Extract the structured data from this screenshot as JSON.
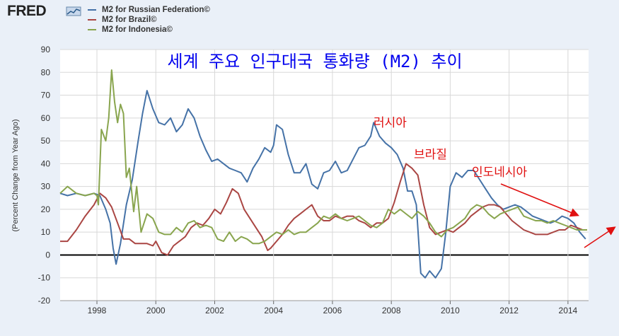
{
  "brand": {
    "logo_text": "FRED",
    "logo_icon": "chart-line-icon"
  },
  "legend": [
    {
      "name": "M2 for Russian Federation©",
      "color": "#4572a7"
    },
    {
      "name": "M2 for Brazil©",
      "color": "#aa4643"
    },
    {
      "name": "M2 for Indonesia©",
      "color": "#89a54e"
    }
  ],
  "chart_data": {
    "type": "line",
    "title": "세계 주요 인구대국 통화량 (M2) 추이",
    "xlabel": "",
    "ylabel": "(Percent Change from Year Ago)",
    "xlim": [
      1996.75,
      2014.7
    ],
    "ylim": [
      -20,
      90
    ],
    "yticks": [
      -20,
      -10,
      0,
      10,
      20,
      30,
      40,
      50,
      60,
      70,
      80,
      90
    ],
    "xticks": [
      1998,
      2000,
      2002,
      2004,
      2006,
      2008,
      2010,
      2012,
      2014
    ],
    "grid": true,
    "zero_line": true,
    "series": [
      {
        "name": "M2 for Russian Federation©",
        "color": "#4572a7",
        "x": [
          1996.75,
          1997.0,
          1997.3,
          1997.6,
          1997.9,
          1998.1,
          1998.3,
          1998.45,
          1998.55,
          1998.65,
          1998.8,
          1999.0,
          1999.2,
          1999.4,
          1999.55,
          1999.7,
          1999.9,
          2000.1,
          2000.3,
          2000.5,
          2000.7,
          2000.9,
          2001.1,
          2001.3,
          2001.5,
          2001.7,
          2001.9,
          2002.1,
          2002.3,
          2002.5,
          2002.7,
          2002.9,
          2003.1,
          2003.3,
          2003.5,
          2003.7,
          2003.9,
          2004.0,
          2004.1,
          2004.3,
          2004.5,
          2004.7,
          2004.9,
          2005.1,
          2005.3,
          2005.5,
          2005.7,
          2005.9,
          2006.1,
          2006.3,
          2006.5,
          2006.7,
          2006.9,
          2007.1,
          2007.3,
          2007.4,
          2007.6,
          2007.8,
          2008.0,
          2008.2,
          2008.4,
          2008.55,
          2008.7,
          2008.85,
          2009.0,
          2009.15,
          2009.3,
          2009.5,
          2009.7,
          2009.85,
          2010.0,
          2010.2,
          2010.4,
          2010.6,
          2010.8,
          2011.0,
          2011.2,
          2011.4,
          2011.6,
          2011.8,
          2012.0,
          2012.2,
          2012.4,
          2012.6,
          2012.8,
          2013.0,
          2013.2,
          2013.4,
          2013.6,
          2013.8,
          2014.0,
          2014.2,
          2014.4,
          2014.6
        ],
        "y": [
          27,
          26,
          27,
          26,
          27,
          26,
          20,
          14,
          3,
          -4,
          5,
          22,
          33,
          50,
          62,
          72,
          64,
          58,
          57,
          60,
          54,
          57,
          64,
          60,
          52,
          46,
          41,
          42,
          40,
          38,
          37,
          36,
          32,
          38,
          42,
          47,
          45,
          48,
          57,
          55,
          44,
          36,
          36,
          40,
          31,
          29,
          36,
          37,
          41,
          36,
          37,
          42,
          47,
          48,
          52,
          58,
          52,
          49,
          47,
          44,
          38,
          28,
          28,
          22,
          -8,
          -10,
          -7,
          -10,
          -6,
          10,
          30,
          36,
          34,
          37,
          37,
          33,
          29,
          25,
          22,
          20,
          21,
          22,
          21,
          19,
          17,
          16,
          15,
          14,
          15,
          17,
          16,
          14,
          10,
          7
        ]
      },
      {
        "name": "M2 for Brazil©",
        "color": "#aa4643",
        "x": [
          1996.75,
          1997.0,
          1997.3,
          1997.6,
          1997.9,
          1998.1,
          1998.3,
          1998.5,
          1998.7,
          1998.9,
          1999.1,
          1999.3,
          1999.5,
          1999.7,
          1999.9,
          2000.0,
          2000.2,
          2000.4,
          2000.6,
          2000.8,
          2001.0,
          2001.2,
          2001.4,
          2001.6,
          2001.8,
          2002.0,
          2002.2,
          2002.4,
          2002.6,
          2002.8,
          2003.0,
          2003.2,
          2003.4,
          2003.6,
          2003.8,
          2003.9,
          2004.1,
          2004.3,
          2004.5,
          2004.7,
          2004.9,
          2005.1,
          2005.3,
          2005.5,
          2005.7,
          2005.9,
          2006.1,
          2006.3,
          2006.5,
          2006.7,
          2006.9,
          2007.1,
          2007.3,
          2007.5,
          2007.7,
          2007.9,
          2008.1,
          2008.3,
          2008.5,
          2008.7,
          2008.9,
          2009.1,
          2009.3,
          2009.5,
          2009.7,
          2009.9,
          2010.1,
          2010.3,
          2010.5,
          2010.7,
          2010.9,
          2011.1,
          2011.3,
          2011.5,
          2011.7,
          2011.9,
          2012.1,
          2012.3,
          2012.5,
          2012.7,
          2012.9,
          2013.1,
          2013.3,
          2013.5,
          2013.7,
          2013.9,
          2014.1,
          2014.3,
          2014.5,
          2014.65
        ],
        "y": [
          6,
          6,
          11,
          17,
          22,
          27,
          25,
          21,
          14,
          7,
          7,
          5,
          5,
          5,
          4,
          6,
          1,
          0,
          4,
          6,
          8,
          12,
          14,
          13,
          16,
          20,
          18,
          23,
          29,
          27,
          20,
          16,
          12,
          8,
          2,
          3,
          6,
          9,
          13,
          16,
          18,
          20,
          22,
          17,
          15,
          15,
          17,
          16,
          17,
          17,
          15,
          14,
          12,
          14,
          14,
          16,
          23,
          32,
          40,
          38,
          35,
          22,
          12,
          9,
          10,
          11,
          10,
          12,
          14,
          17,
          19,
          21,
          22,
          22,
          21,
          18,
          15,
          13,
          11,
          10,
          9,
          9,
          9,
          10,
          11,
          11,
          13,
          12,
          11,
          11
        ]
      },
      {
        "name": "M2 for Indonesia©",
        "color": "#89a54e",
        "x": [
          1996.75,
          1997.0,
          1997.3,
          1997.6,
          1997.9,
          1998.0,
          1998.05,
          1998.15,
          1998.3,
          1998.4,
          1998.5,
          1998.6,
          1998.7,
          1998.8,
          1998.9,
          1999.0,
          1999.1,
          1999.25,
          1999.35,
          1999.5,
          1999.7,
          1999.9,
          2000.1,
          2000.3,
          2000.5,
          2000.7,
          2000.9,
          2001.1,
          2001.3,
          2001.5,
          2001.7,
          2001.9,
          2002.1,
          2002.3,
          2002.5,
          2002.7,
          2002.9,
          2003.1,
          2003.3,
          2003.5,
          2003.7,
          2003.9,
          2004.1,
          2004.3,
          2004.5,
          2004.7,
          2004.9,
          2005.1,
          2005.3,
          2005.5,
          2005.7,
          2005.9,
          2006.1,
          2006.3,
          2006.5,
          2006.7,
          2006.9,
          2007.1,
          2007.3,
          2007.5,
          2007.7,
          2007.9,
          2008.1,
          2008.3,
          2008.5,
          2008.7,
          2008.9,
          2009.1,
          2009.3,
          2009.5,
          2009.7,
          2009.9,
          2010.1,
          2010.3,
          2010.5,
          2010.7,
          2010.9,
          2011.1,
          2011.3,
          2011.5,
          2011.7,
          2011.9,
          2012.1,
          2012.3,
          2012.5,
          2012.7,
          2012.9,
          2013.1,
          2013.3,
          2013.5,
          2013.7,
          2013.9,
          2014.1,
          2014.3,
          2014.5,
          2014.65
        ],
        "y": [
          27,
          30,
          27,
          26,
          27,
          26,
          22,
          55,
          50,
          60,
          81,
          67,
          58,
          66,
          62,
          34,
          38,
          19,
          30,
          10,
          18,
          16,
          10,
          9,
          9,
          12,
          10,
          14,
          15,
          12,
          13,
          12,
          7,
          6,
          10,
          6,
          8,
          7,
          5,
          5,
          6,
          8,
          10,
          9,
          11,
          9,
          10,
          10,
          12,
          14,
          17,
          16,
          18,
          16,
          15,
          16,
          17,
          15,
          13,
          12,
          14,
          20,
          18,
          20,
          18,
          16,
          19,
          17,
          14,
          10,
          8,
          11,
          12,
          14,
          16,
          20,
          22,
          21,
          18,
          16,
          18,
          19,
          20,
          21,
          17,
          16,
          15,
          15,
          14,
          15,
          14,
          13,
          12,
          11,
          11,
          11
        ]
      }
    ],
    "annotations": [
      "러시아",
      "브라질",
      "인도네시아"
    ]
  }
}
